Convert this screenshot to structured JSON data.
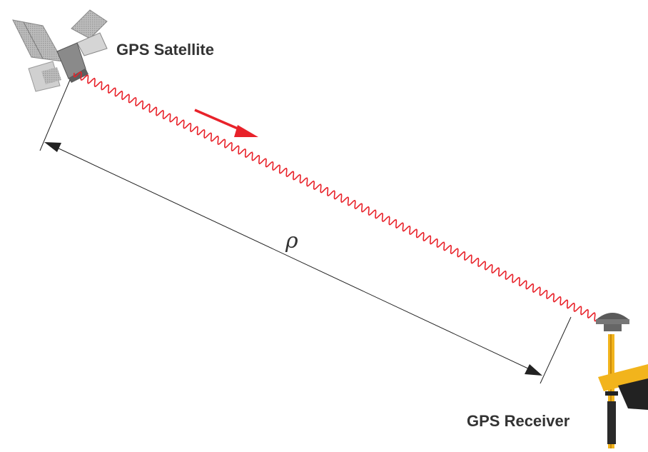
{
  "labels": {
    "satellite": "GPS Satellite",
    "receiver": "GPS Receiver",
    "range_symbol": "ρ"
  },
  "icons": {
    "satellite": "satellite-icon",
    "receiver": "gps-receiver-antenna-icon",
    "signal": "signal-wave-icon",
    "direction": "arrow-right-icon"
  },
  "colors": {
    "signal": "#e8222a",
    "pole": "#f2b41c",
    "satellite_body": "#8a8a8a",
    "text": "#333333"
  }
}
